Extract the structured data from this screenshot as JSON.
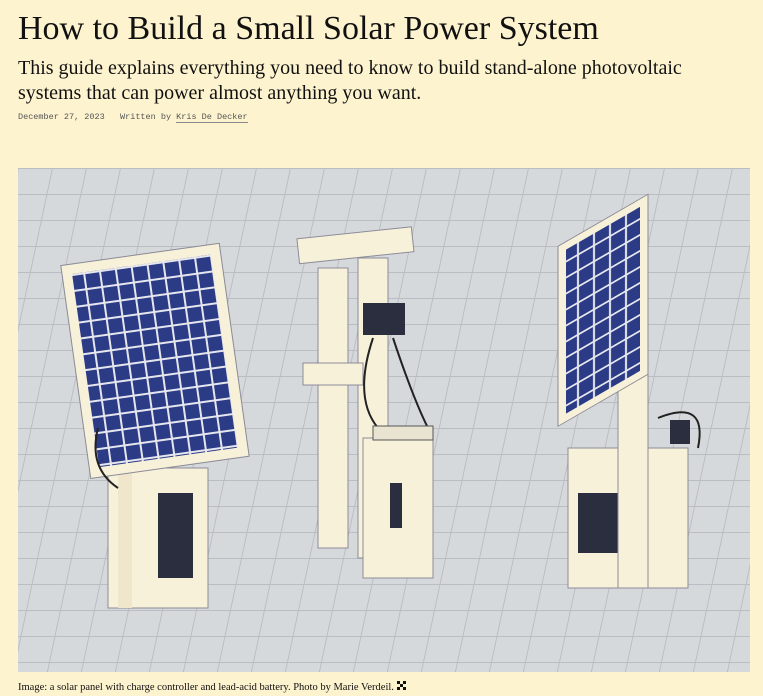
{
  "header": {
    "title": "How to Build a Small Solar Power System",
    "subtitle": "This guide explains everything you need to know to build stand-alone photovoltaic systems that can power almost anything you want."
  },
  "meta": {
    "date": "December 27, 2023",
    "written_by": "Written by",
    "author": "Kris De Decker"
  },
  "figure": {
    "caption": "Image: a solar panel with charge controller and lead-acid battery. Photo by Marie Verdeil."
  }
}
